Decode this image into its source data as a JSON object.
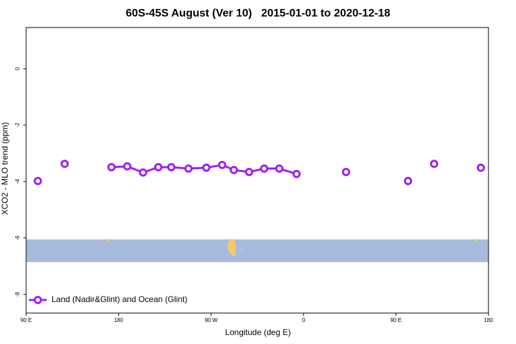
{
  "chart_data": {
    "type": "line",
    "title": "60S-45S August (Ver 10)   2015-01-01 to 2020-12-18",
    "xlabel": "Longitude (deg E)",
    "ylabel": "XCO2 - MLO trend (ppm)",
    "x": [
      101.4,
      127.5,
      173,
      188.4,
      203.8,
      218.6,
      231.3,
      248,
      265.4,
      280.8,
      292.2,
      307,
      321.7,
      336.4,
      353.2,
      401.4,
      461.7,
      487.1,
      532.6
    ],
    "series": [
      {
        "name": "Land (Nadir&Glint) and Ocean (Glint)",
        "color": "#a020f0",
        "values": [
          -3.98,
          -3.37,
          -3.49,
          -3.46,
          -3.68,
          -3.49,
          -3.49,
          -3.54,
          -3.51,
          -3.41,
          -3.59,
          -3.66,
          -3.54,
          -3.54,
          -3.73,
          -3.66,
          -3.98,
          -3.37,
          -3.51
        ]
      }
    ],
    "xlim": [
      90,
      540
    ],
    "xticks": [
      {
        "value": 90,
        "label": "90 E"
      },
      {
        "value": 180,
        "label": "180"
      },
      {
        "value": 270,
        "label": "90 W"
      },
      {
        "value": 360,
        "label": "0"
      },
      {
        "value": 450,
        "label": "90 E"
      },
      {
        "value": 540,
        "label": "180"
      }
    ],
    "ylim": [
      -8.66,
      1.46
    ],
    "yticks": [
      0,
      -2,
      -4,
      -6,
      -8
    ],
    "legend": "bottom-left"
  }
}
